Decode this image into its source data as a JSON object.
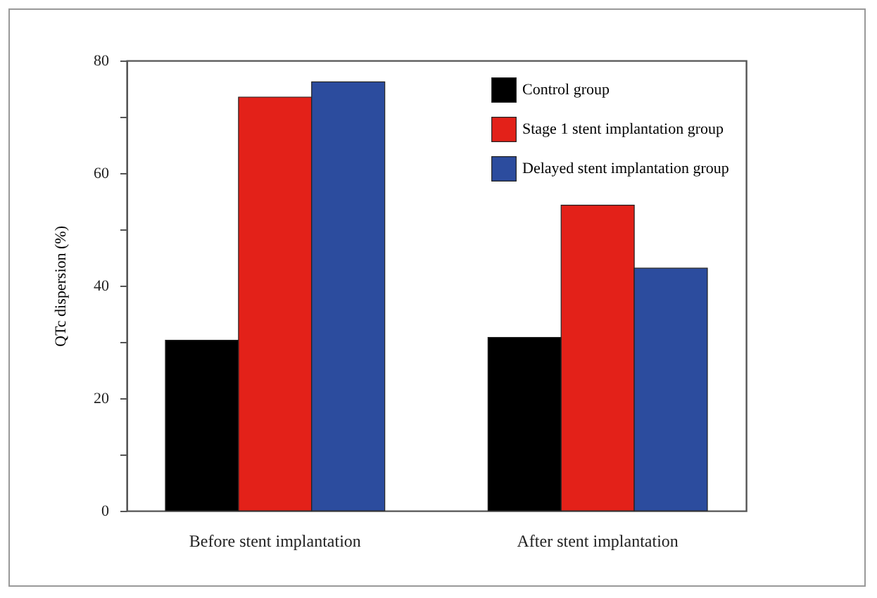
{
  "chart_data": {
    "type": "bar",
    "ylabel": "QTc dispersion (%)",
    "categories": [
      "Before stent implantation",
      "After stent implantation"
    ],
    "series": [
      {
        "name": "Control group",
        "color": "#000000",
        "values": [
          30.3,
          30.8
        ]
      },
      {
        "name": "Stage 1 stent implantation group",
        "color": "#e32119",
        "values": [
          73.5,
          54.3
        ]
      },
      {
        "name": "Delayed stent implantation group",
        "color": "#2c4c9e",
        "values": [
          76.2,
          43.1
        ]
      }
    ],
    "ylim": [
      0,
      80
    ],
    "yticks": [
      0,
      {
        "value": 10,
        "label": null
      },
      20,
      {
        "value": 30,
        "label": null
      },
      40,
      {
        "value": 50,
        "label": null
      },
      60,
      {
        "value": 70,
        "label": null
      },
      80
    ],
    "grid": false,
    "legend": "top right"
  }
}
